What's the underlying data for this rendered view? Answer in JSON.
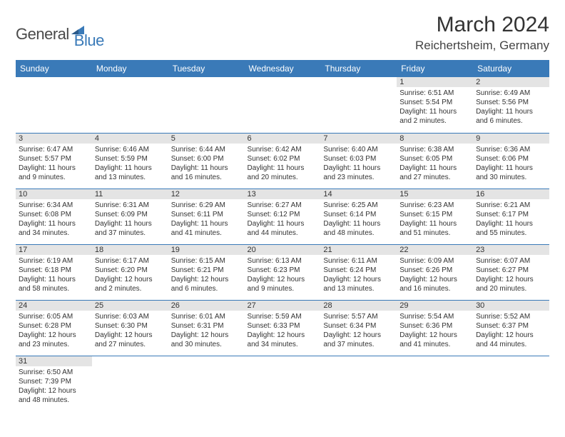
{
  "logo": {
    "part1": "General",
    "part2": "Blue"
  },
  "title": "March 2024",
  "location": "Reichertsheim, Germany",
  "colors": {
    "header_bg": "#3a7ab8",
    "header_text": "#ffffff",
    "daynum_bg": "#e4e4e4",
    "border": "#3a7ab8",
    "logo_blue": "#3a7ab8",
    "logo_gray": "#4a4a4a"
  },
  "weekdays": [
    "Sunday",
    "Monday",
    "Tuesday",
    "Wednesday",
    "Thursday",
    "Friday",
    "Saturday"
  ],
  "weeks": [
    [
      null,
      null,
      null,
      null,
      null,
      {
        "d": "1",
        "sr": "Sunrise: 6:51 AM",
        "ss": "Sunset: 5:54 PM",
        "dl1": "Daylight: 11 hours",
        "dl2": "and 2 minutes."
      },
      {
        "d": "2",
        "sr": "Sunrise: 6:49 AM",
        "ss": "Sunset: 5:56 PM",
        "dl1": "Daylight: 11 hours",
        "dl2": "and 6 minutes."
      }
    ],
    [
      {
        "d": "3",
        "sr": "Sunrise: 6:47 AM",
        "ss": "Sunset: 5:57 PM",
        "dl1": "Daylight: 11 hours",
        "dl2": "and 9 minutes."
      },
      {
        "d": "4",
        "sr": "Sunrise: 6:46 AM",
        "ss": "Sunset: 5:59 PM",
        "dl1": "Daylight: 11 hours",
        "dl2": "and 13 minutes."
      },
      {
        "d": "5",
        "sr": "Sunrise: 6:44 AM",
        "ss": "Sunset: 6:00 PM",
        "dl1": "Daylight: 11 hours",
        "dl2": "and 16 minutes."
      },
      {
        "d": "6",
        "sr": "Sunrise: 6:42 AM",
        "ss": "Sunset: 6:02 PM",
        "dl1": "Daylight: 11 hours",
        "dl2": "and 20 minutes."
      },
      {
        "d": "7",
        "sr": "Sunrise: 6:40 AM",
        "ss": "Sunset: 6:03 PM",
        "dl1": "Daylight: 11 hours",
        "dl2": "and 23 minutes."
      },
      {
        "d": "8",
        "sr": "Sunrise: 6:38 AM",
        "ss": "Sunset: 6:05 PM",
        "dl1": "Daylight: 11 hours",
        "dl2": "and 27 minutes."
      },
      {
        "d": "9",
        "sr": "Sunrise: 6:36 AM",
        "ss": "Sunset: 6:06 PM",
        "dl1": "Daylight: 11 hours",
        "dl2": "and 30 minutes."
      }
    ],
    [
      {
        "d": "10",
        "sr": "Sunrise: 6:34 AM",
        "ss": "Sunset: 6:08 PM",
        "dl1": "Daylight: 11 hours",
        "dl2": "and 34 minutes."
      },
      {
        "d": "11",
        "sr": "Sunrise: 6:31 AM",
        "ss": "Sunset: 6:09 PM",
        "dl1": "Daylight: 11 hours",
        "dl2": "and 37 minutes."
      },
      {
        "d": "12",
        "sr": "Sunrise: 6:29 AM",
        "ss": "Sunset: 6:11 PM",
        "dl1": "Daylight: 11 hours",
        "dl2": "and 41 minutes."
      },
      {
        "d": "13",
        "sr": "Sunrise: 6:27 AM",
        "ss": "Sunset: 6:12 PM",
        "dl1": "Daylight: 11 hours",
        "dl2": "and 44 minutes."
      },
      {
        "d": "14",
        "sr": "Sunrise: 6:25 AM",
        "ss": "Sunset: 6:14 PM",
        "dl1": "Daylight: 11 hours",
        "dl2": "and 48 minutes."
      },
      {
        "d": "15",
        "sr": "Sunrise: 6:23 AM",
        "ss": "Sunset: 6:15 PM",
        "dl1": "Daylight: 11 hours",
        "dl2": "and 51 minutes."
      },
      {
        "d": "16",
        "sr": "Sunrise: 6:21 AM",
        "ss": "Sunset: 6:17 PM",
        "dl1": "Daylight: 11 hours",
        "dl2": "and 55 minutes."
      }
    ],
    [
      {
        "d": "17",
        "sr": "Sunrise: 6:19 AM",
        "ss": "Sunset: 6:18 PM",
        "dl1": "Daylight: 11 hours",
        "dl2": "and 58 minutes."
      },
      {
        "d": "18",
        "sr": "Sunrise: 6:17 AM",
        "ss": "Sunset: 6:20 PM",
        "dl1": "Daylight: 12 hours",
        "dl2": "and 2 minutes."
      },
      {
        "d": "19",
        "sr": "Sunrise: 6:15 AM",
        "ss": "Sunset: 6:21 PM",
        "dl1": "Daylight: 12 hours",
        "dl2": "and 6 minutes."
      },
      {
        "d": "20",
        "sr": "Sunrise: 6:13 AM",
        "ss": "Sunset: 6:23 PM",
        "dl1": "Daylight: 12 hours",
        "dl2": "and 9 minutes."
      },
      {
        "d": "21",
        "sr": "Sunrise: 6:11 AM",
        "ss": "Sunset: 6:24 PM",
        "dl1": "Daylight: 12 hours",
        "dl2": "and 13 minutes."
      },
      {
        "d": "22",
        "sr": "Sunrise: 6:09 AM",
        "ss": "Sunset: 6:26 PM",
        "dl1": "Daylight: 12 hours",
        "dl2": "and 16 minutes."
      },
      {
        "d": "23",
        "sr": "Sunrise: 6:07 AM",
        "ss": "Sunset: 6:27 PM",
        "dl1": "Daylight: 12 hours",
        "dl2": "and 20 minutes."
      }
    ],
    [
      {
        "d": "24",
        "sr": "Sunrise: 6:05 AM",
        "ss": "Sunset: 6:28 PM",
        "dl1": "Daylight: 12 hours",
        "dl2": "and 23 minutes."
      },
      {
        "d": "25",
        "sr": "Sunrise: 6:03 AM",
        "ss": "Sunset: 6:30 PM",
        "dl1": "Daylight: 12 hours",
        "dl2": "and 27 minutes."
      },
      {
        "d": "26",
        "sr": "Sunrise: 6:01 AM",
        "ss": "Sunset: 6:31 PM",
        "dl1": "Daylight: 12 hours",
        "dl2": "and 30 minutes."
      },
      {
        "d": "27",
        "sr": "Sunrise: 5:59 AM",
        "ss": "Sunset: 6:33 PM",
        "dl1": "Daylight: 12 hours",
        "dl2": "and 34 minutes."
      },
      {
        "d": "28",
        "sr": "Sunrise: 5:57 AM",
        "ss": "Sunset: 6:34 PM",
        "dl1": "Daylight: 12 hours",
        "dl2": "and 37 minutes."
      },
      {
        "d": "29",
        "sr": "Sunrise: 5:54 AM",
        "ss": "Sunset: 6:36 PM",
        "dl1": "Daylight: 12 hours",
        "dl2": "and 41 minutes."
      },
      {
        "d": "30",
        "sr": "Sunrise: 5:52 AM",
        "ss": "Sunset: 6:37 PM",
        "dl1": "Daylight: 12 hours",
        "dl2": "and 44 minutes."
      }
    ],
    [
      {
        "d": "31",
        "sr": "Sunrise: 6:50 AM",
        "ss": "Sunset: 7:39 PM",
        "dl1": "Daylight: 12 hours",
        "dl2": "and 48 minutes."
      },
      null,
      null,
      null,
      null,
      null,
      null
    ]
  ]
}
